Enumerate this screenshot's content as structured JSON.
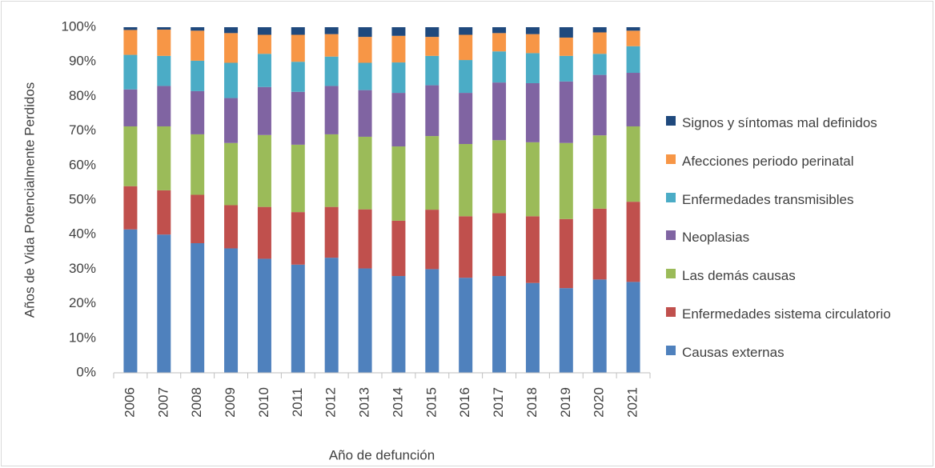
{
  "chart_data": {
    "type": "stacked_bar_100",
    "x_label": "Año de defunción",
    "y_label": "Años de Vida Potencialmente Perdidos",
    "categories": [
      "2006",
      "2007",
      "2008",
      "2009",
      "2010",
      "2011",
      "2012",
      "2013",
      "2014",
      "2015",
      "2016",
      "2017",
      "2018",
      "2019",
      "2020",
      "2021"
    ],
    "ylim": [
      0,
      100
    ],
    "yticks": [
      {
        "value": 0,
        "label": "0%"
      },
      {
        "value": 10,
        "label": "10%"
      },
      {
        "value": 20,
        "label": "20%"
      },
      {
        "value": 30,
        "label": "30%"
      },
      {
        "value": 40,
        "label": "40%"
      },
      {
        "value": 50,
        "label": "50%"
      },
      {
        "value": 60,
        "label": "60%"
      },
      {
        "value": 70,
        "label": "70%"
      },
      {
        "value": 80,
        "label": "80%"
      },
      {
        "value": 90,
        "label": "90%"
      },
      {
        "value": 100,
        "label": "100%"
      }
    ],
    "grid": false,
    "legend": "right",
    "series": [
      {
        "name": "Causas externas",
        "color": "#4f81bd",
        "values": [
          41.5,
          40,
          37.5,
          36,
          33,
          31.3,
          33.3,
          30.2,
          28,
          30,
          27.5,
          28,
          26,
          24.5,
          27,
          26.3
        ]
      },
      {
        "name": "Enfermedades sistema circulatorio",
        "color": "#c0504d",
        "values": [
          12.5,
          12.8,
          14,
          12.5,
          15,
          15.2,
          14.7,
          17.1,
          16,
          17.2,
          17.8,
          18.2,
          19.3,
          20,
          20.5,
          23.2
        ]
      },
      {
        "name": "Las demás causas",
        "color": "#9bbb59",
        "values": [
          17.3,
          18.5,
          17.5,
          18,
          20.8,
          19.5,
          21,
          21,
          21.5,
          21.3,
          20.9,
          21.1,
          21.4,
          22,
          21.2,
          21.8
        ]
      },
      {
        "name": "Neoplasias",
        "color": "#8064a2",
        "values": [
          10.7,
          11.7,
          12.5,
          13,
          13.9,
          15.3,
          14,
          13.5,
          15.5,
          14.7,
          14.8,
          16.7,
          17.1,
          17.8,
          17.5,
          15.5
        ]
      },
      {
        "name": "Enfermedades transmisibles",
        "color": "#4bacc6",
        "values": [
          10,
          8.7,
          8.8,
          10.2,
          9.6,
          8.7,
          8.5,
          7.9,
          8.8,
          8.5,
          9.5,
          9,
          8.7,
          7.4,
          6.1,
          7.7
        ]
      },
      {
        "name": "Afecciones periodo perinatal",
        "color": "#f79646",
        "values": [
          7.2,
          7.6,
          8.7,
          8.6,
          5.5,
          7.8,
          6.5,
          7.5,
          7.7,
          5.5,
          7.3,
          5.3,
          5.5,
          5.3,
          6.2,
          4.5
        ]
      },
      {
        "name": "Signos y síntomas mal definidos",
        "color": "#1f497d",
        "values": [
          0.8,
          0.7,
          1,
          1.7,
          2.2,
          2.2,
          2,
          2.8,
          2.5,
          2.8,
          2.2,
          1.7,
          2,
          3,
          1.5,
          1
        ]
      }
    ]
  }
}
